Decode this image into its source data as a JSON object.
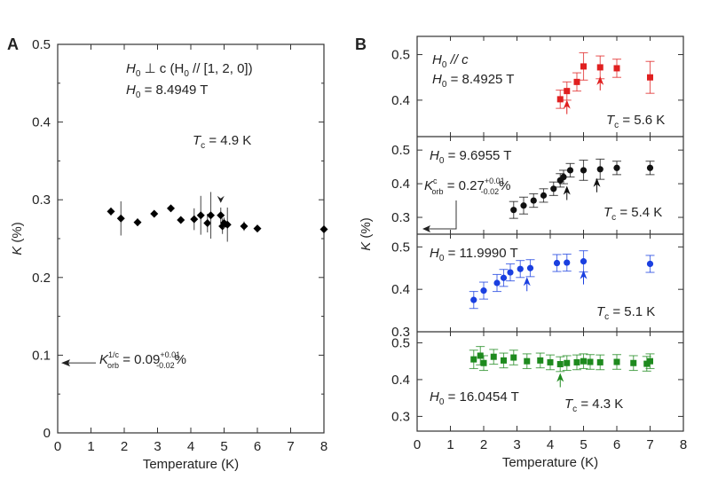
{
  "chart_data": [
    {
      "panel": "A",
      "type": "scatter",
      "xlabel": "Temperature (K)",
      "ylabel": "K (%)",
      "xlim": [
        0,
        8
      ],
      "ylim": [
        0,
        0.5
      ],
      "xticks": [
        "0",
        "1",
        "2",
        "3",
        "4",
        "5",
        "6",
        "7",
        "8"
      ],
      "yticks": [
        "0",
        "0.1",
        "0.2",
        "0.3",
        "0.4",
        "0.5"
      ],
      "color": "#000000",
      "marker": "diamond",
      "annotations": {
        "field_orientation": "H0 ⊥ c (H0 // [1, 2, 0])",
        "field": "H0 = 8.4949 T",
        "tc": "Tc = 4.9 K",
        "tc_value": 4.9,
        "korb": "K orb = 0.09 +0.01 -0.02 %",
        "korb_value": 0.09
      },
      "points": [
        {
          "x": 1.6,
          "y": 0.285,
          "err": 0.005
        },
        {
          "x": 1.9,
          "y": 0.276,
          "err": 0.022
        },
        {
          "x": 2.4,
          "y": 0.271,
          "err": 0.005
        },
        {
          "x": 2.9,
          "y": 0.282,
          "err": 0.004
        },
        {
          "x": 3.4,
          "y": 0.289,
          "err": 0.004
        },
        {
          "x": 3.7,
          "y": 0.274,
          "err": 0.004
        },
        {
          "x": 4.1,
          "y": 0.275,
          "err": 0.014
        },
        {
          "x": 4.3,
          "y": 0.28,
          "err": 0.025
        },
        {
          "x": 4.5,
          "y": 0.27,
          "err": 0.012
        },
        {
          "x": 4.6,
          "y": 0.28,
          "err": 0.03
        },
        {
          "x": 4.9,
          "y": 0.28,
          "err": 0.01
        },
        {
          "x": 4.95,
          "y": 0.266,
          "err": 0.01
        },
        {
          "x": 5.0,
          "y": 0.27,
          "err": 0.007
        },
        {
          "x": 5.1,
          "y": 0.268,
          "err": 0.022
        },
        {
          "x": 5.6,
          "y": 0.266,
          "err": 0.006
        },
        {
          "x": 6.0,
          "y": 0.263,
          "err": 0.004
        },
        {
          "x": 8.0,
          "y": 0.262,
          "err": 0.004
        }
      ]
    },
    {
      "panel": "B",
      "type": "scatter",
      "xlabel": "Temperature (K)",
      "ylabel": "K (%)",
      "xlim": [
        0,
        8
      ],
      "xticks": [
        "0",
        "1",
        "2",
        "3",
        "4",
        "5",
        "6",
        "7",
        "8"
      ],
      "subpanels": [
        {
          "ylim": [
            0.32,
            0.54
          ],
          "yticks": [
            "0.4",
            "0.5"
          ],
          "color": "#e02020",
          "marker": "square",
          "field_orientation": "H0 // c",
          "field": "H0 = 8.4925 T",
          "tc": "Tc = 5.6 K",
          "arrow_x": [
            4.5,
            5.5
          ],
          "points": [
            {
              "x": 4.3,
              "y": 0.402,
              "err": 0.02
            },
            {
              "x": 4.5,
              "y": 0.42,
              "err": 0.02
            },
            {
              "x": 4.8,
              "y": 0.44,
              "err": 0.02
            },
            {
              "x": 5.0,
              "y": 0.474,
              "err": 0.03
            },
            {
              "x": 5.5,
              "y": 0.472,
              "err": 0.025
            },
            {
              "x": 6.0,
              "y": 0.47,
              "err": 0.02
            },
            {
              "x": 7.0,
              "y": 0.45,
              "err": 0.035
            }
          ]
        },
        {
          "ylim": [
            0.25,
            0.54
          ],
          "yticks": [
            "0.3",
            "0.4",
            "0.5"
          ],
          "color": "#111111",
          "marker": "circle",
          "field": "H0 = 9.6955 T",
          "tc": "Tc = 5.4 K",
          "korb": "K orb = 0.27 +0.01 -0.02 %",
          "korb_value": 0.27,
          "arrow_x": [
            4.5,
            5.4
          ],
          "points": [
            {
              "x": 2.9,
              "y": 0.322,
              "err": 0.025
            },
            {
              "x": 3.2,
              "y": 0.335,
              "err": 0.025
            },
            {
              "x": 3.5,
              "y": 0.35,
              "err": 0.02
            },
            {
              "x": 3.8,
              "y": 0.365,
              "err": 0.02
            },
            {
              "x": 4.1,
              "y": 0.385,
              "err": 0.02
            },
            {
              "x": 4.3,
              "y": 0.41,
              "err": 0.02
            },
            {
              "x": 4.4,
              "y": 0.42,
              "err": 0.02
            },
            {
              "x": 4.6,
              "y": 0.44,
              "err": 0.02
            },
            {
              "x": 5.0,
              "y": 0.44,
              "err": 0.03
            },
            {
              "x": 5.5,
              "y": 0.443,
              "err": 0.03
            },
            {
              "x": 6.0,
              "y": 0.447,
              "err": 0.02
            },
            {
              "x": 7.0,
              "y": 0.447,
              "err": 0.02
            }
          ]
        },
        {
          "ylim": [
            0.3,
            0.53
          ],
          "yticks": [
            "0.3",
            "0.4",
            "0.5"
          ],
          "color": "#1a3fe0",
          "marker": "circle",
          "field": "H0 = 11.9990 T",
          "tc": "Tc = 5.1 K",
          "arrow_x": [
            3.3,
            5.0
          ],
          "points": [
            {
              "x": 1.7,
              "y": 0.375,
              "err": 0.02
            },
            {
              "x": 2.0,
              "y": 0.397,
              "err": 0.02
            },
            {
              "x": 2.4,
              "y": 0.415,
              "err": 0.02
            },
            {
              "x": 2.6,
              "y": 0.427,
              "err": 0.02
            },
            {
              "x": 2.8,
              "y": 0.44,
              "err": 0.02
            },
            {
              "x": 3.1,
              "y": 0.448,
              "err": 0.02
            },
            {
              "x": 3.4,
              "y": 0.45,
              "err": 0.02
            },
            {
              "x": 4.2,
              "y": 0.462,
              "err": 0.02
            },
            {
              "x": 4.5,
              "y": 0.463,
              "err": 0.02
            },
            {
              "x": 5.0,
              "y": 0.466,
              "err": 0.025
            },
            {
              "x": 7.0,
              "y": 0.46,
              "err": 0.02
            }
          ]
        },
        {
          "ylim": [
            0.26,
            0.53
          ],
          "yticks": [
            "0.3",
            "0.4",
            "0.5"
          ],
          "color": "#1e8a1e",
          "marker": "square",
          "field": "H0 = 16.0454 T",
          "tc": "Tc = 4.3 K",
          "arrow_x": [
            4.3
          ],
          "points": [
            {
              "x": 1.7,
              "y": 0.455,
              "err": 0.025
            },
            {
              "x": 1.9,
              "y": 0.465,
              "err": 0.025
            },
            {
              "x": 2.0,
              "y": 0.445,
              "err": 0.02
            },
            {
              "x": 2.3,
              "y": 0.462,
              "err": 0.02
            },
            {
              "x": 2.6,
              "y": 0.452,
              "err": 0.02
            },
            {
              "x": 2.9,
              "y": 0.46,
              "err": 0.02
            },
            {
              "x": 3.3,
              "y": 0.45,
              "err": 0.02
            },
            {
              "x": 3.7,
              "y": 0.452,
              "err": 0.02
            },
            {
              "x": 4.0,
              "y": 0.447,
              "err": 0.02
            },
            {
              "x": 4.3,
              "y": 0.442,
              "err": 0.02
            },
            {
              "x": 4.5,
              "y": 0.445,
              "err": 0.02
            },
            {
              "x": 4.8,
              "y": 0.447,
              "err": 0.02
            },
            {
              "x": 5.0,
              "y": 0.45,
              "err": 0.02
            },
            {
              "x": 5.2,
              "y": 0.448,
              "err": 0.02
            },
            {
              "x": 5.5,
              "y": 0.447,
              "err": 0.02
            },
            {
              "x": 6.0,
              "y": 0.448,
              "err": 0.02
            },
            {
              "x": 6.5,
              "y": 0.445,
              "err": 0.02
            },
            {
              "x": 6.9,
              "y": 0.443,
              "err": 0.02
            },
            {
              "x": 7.0,
              "y": 0.45,
              "err": 0.02
            }
          ]
        }
      ]
    }
  ],
  "labels": {
    "panel_a": "A",
    "panel_b": "B",
    "a_orient_pre": "H",
    "a_orient_sub": "0",
    "a_orient_mid": " ⊥ c (H",
    "a_orient_sub2": "0",
    "a_orient_post": " // [1, 2, 0])",
    "a_field_h": "H",
    "a_field_sub": "0",
    "a_field_val": " = 8.4949 T",
    "a_tc_t": "T",
    "a_tc_sub": "c",
    "a_tc_val": " = 4.9 K",
    "a_korb_k": "K",
    "a_korb_sup": "1/c",
    "a_korb_sub": "orb",
    "a_korb_val": " = 0.09",
    "a_korb_plus": "+0.01",
    "a_korb_minus": "-0.02",
    "a_korb_pct": "%",
    "b1_orient_h": "H",
    "b1_orient_sub": "0",
    "b1_orient_val": " // c",
    "b1_field_h": "H",
    "b1_field_sub": "0",
    "b1_field_val": " = 8.4925 T",
    "b1_tc_t": "T",
    "b1_tc_sub": "c",
    "b1_tc_val": " = 5.6 K",
    "b2_field_h": "H",
    "b2_field_sub": "0",
    "b2_field_val": " = 9.6955 T",
    "b2_korb_k": "K",
    "b2_korb_sup": "c",
    "b2_korb_sub": "orb",
    "b2_korb_val": " = 0.27",
    "b2_korb_plus": "+0.01",
    "b2_korb_minus": "-0.02",
    "b2_korb_pct": "%",
    "b2_tc_t": "T",
    "b2_tc_sub": "c",
    "b2_tc_val": " = 5.4 K",
    "b3_field_h": "H",
    "b3_field_sub": "0",
    "b3_field_val": " = 11.9990 T",
    "b3_tc_t": "T",
    "b3_tc_sub": "c",
    "b3_tc_val": " = 5.1 K",
    "b4_field_h": "H",
    "b4_field_sub": "0",
    "b4_field_val": " = 16.0454 T",
    "b4_tc_t": "T",
    "b4_tc_sub": "c",
    "b4_tc_val": " = 4.3 K",
    "a_ylabel_k": "K",
    "a_ylabel_rest": " (%)",
    "b_ylabel_k": "K",
    "b_ylabel_rest": " (%)",
    "a_xlabel": "Temperature (K)",
    "b_xlabel": "Temperature (K)"
  }
}
